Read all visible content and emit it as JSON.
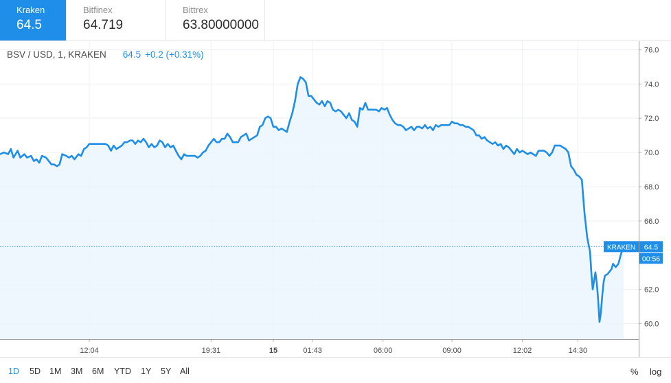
{
  "exchanges": [
    {
      "name": "Kraken",
      "price": "64.5",
      "active": true
    },
    {
      "name": "Bitfinex",
      "price": "64.719",
      "active": false
    },
    {
      "name": "Bittrex",
      "price": "63.80000000",
      "active": false
    }
  ],
  "legend": {
    "symbol": "BSV / USD, 1, KRAKEN",
    "value": "64.5",
    "change": "+0.2 (+0.31%)"
  },
  "chart_data": {
    "type": "area",
    "y_ticks": [
      "76.0",
      "74.0",
      "72.0",
      "70.0",
      "68.0",
      "66.0",
      "64.0",
      "62.0",
      "60.0"
    ],
    "ylim": [
      59.1,
      76.5
    ],
    "x_ticks": [
      {
        "label": "12:04",
        "x": 66,
        "bold": false
      },
      {
        "label": "19:31",
        "x": 156,
        "bold": false
      },
      {
        "label": "15",
        "x": 202,
        "bold": true
      },
      {
        "label": "01:43",
        "x": 231,
        "bold": false
      },
      {
        "label": "06:00",
        "x": 283,
        "bold": false
      },
      {
        "label": "09:00",
        "x": 334,
        "bold": false
      },
      {
        "label": "12:02",
        "x": 386,
        "bold": false
      },
      {
        "label": "14:30",
        "x": 427,
        "bold": false
      }
    ],
    "xlim": [
      0,
      472
    ],
    "series": [
      {
        "points": [
          [
            0,
            69.9
          ],
          [
            3,
            70.0
          ],
          [
            6,
            69.9
          ],
          [
            8,
            70.2
          ],
          [
            10,
            69.7
          ],
          [
            13,
            70.1
          ],
          [
            15,
            69.7
          ],
          [
            18,
            69.9
          ],
          [
            20,
            69.7
          ],
          [
            23,
            69.8
          ],
          [
            25,
            69.5
          ],
          [
            27,
            69.6
          ],
          [
            29,
            69.4
          ],
          [
            31,
            69.8
          ],
          [
            34,
            69.7
          ],
          [
            36,
            69.5
          ],
          [
            38,
            69.3
          ],
          [
            40,
            69.3
          ],
          [
            42,
            69.2
          ],
          [
            44,
            69.3
          ],
          [
            46,
            69.9
          ],
          [
            49,
            69.8
          ],
          [
            51,
            69.7
          ],
          [
            53,
            69.8
          ],
          [
            55,
            69.6
          ],
          [
            58,
            69.9
          ],
          [
            60,
            69.8
          ],
          [
            62,
            70.2
          ],
          [
            64,
            70.3
          ],
          [
            66,
            70.5
          ],
          [
            70,
            70.5
          ],
          [
            73,
            70.5
          ],
          [
            76,
            70.5
          ],
          [
            78,
            70.5
          ],
          [
            80,
            70.4
          ],
          [
            82,
            70.1
          ],
          [
            84,
            70.4
          ],
          [
            86,
            70.2
          ],
          [
            88,
            70.3
          ],
          [
            90,
            70.4
          ],
          [
            92,
            70.6
          ],
          [
            94,
            70.6
          ],
          [
            96,
            70.7
          ],
          [
            98,
            70.7
          ],
          [
            100,
            70.5
          ],
          [
            102,
            70.7
          ],
          [
            104,
            70.6
          ],
          [
            106,
            70.8
          ],
          [
            108,
            70.6
          ],
          [
            110,
            70.3
          ],
          [
            112,
            70.5
          ],
          [
            114,
            70.3
          ],
          [
            116,
            70.4
          ],
          [
            118,
            70.7
          ],
          [
            120,
            70.6
          ],
          [
            122,
            70.3
          ],
          [
            124,
            70.5
          ],
          [
            126,
            70.3
          ],
          [
            128,
            70.4
          ],
          [
            130,
            70.1
          ],
          [
            132,
            69.8
          ],
          [
            134,
            69.6
          ],
          [
            136,
            69.9
          ],
          [
            138,
            69.8
          ],
          [
            140,
            69.8
          ],
          [
            142,
            69.8
          ],
          [
            144,
            69.8
          ],
          [
            146,
            69.7
          ],
          [
            148,
            69.8
          ],
          [
            150,
            70.0
          ],
          [
            152,
            70.1
          ],
          [
            154,
            70.4
          ],
          [
            156,
            70.6
          ],
          [
            158,
            70.8
          ],
          [
            160,
            70.6
          ],
          [
            162,
            70.6
          ],
          [
            164,
            70.8
          ],
          [
            166,
            70.8
          ],
          [
            168,
            71.1
          ],
          [
            170,
            70.9
          ],
          [
            172,
            70.6
          ],
          [
            174,
            70.6
          ],
          [
            176,
            70.6
          ],
          [
            178,
            70.9
          ],
          [
            180,
            71.0
          ],
          [
            182,
            71.1
          ],
          [
            184,
            70.7
          ],
          [
            186,
            70.8
          ],
          [
            188,
            70.9
          ],
          [
            190,
            71.0
          ],
          [
            192,
            71.5
          ],
          [
            194,
            71.6
          ],
          [
            196,
            72.0
          ],
          [
            198,
            72.1
          ],
          [
            200,
            72.0
          ],
          [
            202,
            71.5
          ],
          [
            204,
            71.5
          ],
          [
            206,
            71.3
          ],
          [
            208,
            71.4
          ],
          [
            210,
            71.3
          ],
          [
            212,
            71.2
          ],
          [
            214,
            71.8
          ],
          [
            216,
            72.3
          ],
          [
            218,
            73.0
          ],
          [
            220,
            74.0
          ],
          [
            222,
            74.4
          ],
          [
            224,
            74.3
          ],
          [
            226,
            74.1
          ],
          [
            228,
            73.3
          ],
          [
            230,
            73.3
          ],
          [
            232,
            73.1
          ],
          [
            234,
            72.9
          ],
          [
            236,
            72.8
          ],
          [
            238,
            73.0
          ],
          [
            240,
            72.7
          ],
          [
            242,
            73.0
          ],
          [
            244,
            72.9
          ],
          [
            246,
            72.5
          ],
          [
            248,
            72.4
          ],
          [
            250,
            72.5
          ],
          [
            252,
            72.4
          ],
          [
            254,
            72.2
          ],
          [
            256,
            72.0
          ],
          [
            258,
            72.3
          ],
          [
            260,
            71.9
          ],
          [
            262,
            71.8
          ],
          [
            264,
            71.5
          ],
          [
            266,
            72.6
          ],
          [
            268,
            72.5
          ],
          [
            270,
            72.9
          ],
          [
            272,
            72.5
          ],
          [
            274,
            72.5
          ],
          [
            276,
            72.5
          ],
          [
            278,
            72.5
          ],
          [
            280,
            72.4
          ],
          [
            282,
            72.6
          ],
          [
            284,
            72.5
          ],
          [
            286,
            72.6
          ],
          [
            288,
            72.2
          ],
          [
            290,
            71.9
          ],
          [
            292,
            71.7
          ],
          [
            294,
            71.6
          ],
          [
            296,
            71.6
          ],
          [
            298,
            71.5
          ],
          [
            300,
            71.3
          ],
          [
            302,
            71.4
          ],
          [
            304,
            71.5
          ],
          [
            306,
            71.3
          ],
          [
            308,
            71.5
          ],
          [
            310,
            71.5
          ],
          [
            312,
            71.4
          ],
          [
            314,
            71.6
          ],
          [
            316,
            71.4
          ],
          [
            318,
            71.5
          ],
          [
            320,
            71.3
          ],
          [
            322,
            71.6
          ],
          [
            324,
            71.5
          ],
          [
            326,
            71.6
          ],
          [
            328,
            71.6
          ],
          [
            330,
            71.6
          ],
          [
            332,
            71.6
          ],
          [
            334,
            71.8
          ],
          [
            336,
            71.7
          ],
          [
            338,
            71.7
          ],
          [
            340,
            71.6
          ],
          [
            342,
            71.6
          ],
          [
            344,
            71.5
          ],
          [
            346,
            71.5
          ],
          [
            348,
            71.4
          ],
          [
            350,
            71.3
          ],
          [
            352,
            71.0
          ],
          [
            354,
            71.0
          ],
          [
            356,
            70.8
          ],
          [
            358,
            70.9
          ],
          [
            360,
            70.7
          ],
          [
            362,
            70.6
          ],
          [
            364,
            70.5
          ],
          [
            366,
            70.6
          ],
          [
            368,
            70.4
          ],
          [
            370,
            70.5
          ],
          [
            372,
            70.2
          ],
          [
            374,
            70.4
          ],
          [
            376,
            70.3
          ],
          [
            378,
            70.1
          ],
          [
            380,
            69.9
          ],
          [
            382,
            70.2
          ],
          [
            384,
            70.0
          ],
          [
            386,
            70.1
          ],
          [
            388,
            70.0
          ],
          [
            390,
            69.9
          ],
          [
            392,
            70.0
          ],
          [
            394,
            69.9
          ],
          [
            396,
            69.8
          ],
          [
            398,
            70.1
          ],
          [
            400,
            70.1
          ],
          [
            402,
            70.1
          ],
          [
            404,
            70.0
          ],
          [
            406,
            69.8
          ],
          [
            408,
            70.0
          ],
          [
            410,
            70.4
          ],
          [
            412,
            70.4
          ],
          [
            414,
            70.4
          ],
          [
            416,
            70.3
          ],
          [
            418,
            70.2
          ],
          [
            420,
            70.0
          ],
          [
            422,
            69.2
          ],
          [
            424,
            69.0
          ],
          [
            426,
            68.7
          ],
          [
            428,
            68.6
          ],
          [
            430,
            68.4
          ],
          [
            432,
            66.4
          ],
          [
            434,
            65.0
          ],
          [
            436,
            64.2
          ],
          [
            437,
            63.0
          ],
          [
            438,
            62.0
          ],
          [
            439,
            62.5
          ],
          [
            440,
            63.0
          ],
          [
            441,
            62.4
          ],
          [
            442,
            61.4
          ],
          [
            443,
            60.1
          ],
          [
            444,
            60.6
          ],
          [
            445,
            61.6
          ],
          [
            446,
            62.4
          ],
          [
            447,
            62.8
          ],
          [
            449,
            62.9
          ],
          [
            450,
            63.0
          ],
          [
            452,
            63.2
          ],
          [
            453,
            63.5
          ],
          [
            455,
            63.3
          ],
          [
            457,
            63.5
          ],
          [
            458,
            63.8
          ],
          [
            459,
            64.1
          ],
          [
            460,
            64.3
          ],
          [
            461,
            64.5
          ]
        ]
      }
    ],
    "last_value": 64.5,
    "price_label": "KRAKEN",
    "price_value": "64.5",
    "countdown": "00:56",
    "grid": true,
    "line_color": "#1e8ee8"
  },
  "range_buttons": [
    {
      "label": "1D",
      "active": true
    },
    {
      "label": "5D",
      "active": false
    },
    {
      "label": "1M",
      "active": false
    },
    {
      "label": "3M",
      "active": false
    },
    {
      "label": "6M",
      "active": false
    },
    {
      "label": "YTD",
      "active": false
    },
    {
      "label": "1Y",
      "active": false
    },
    {
      "label": "5Y",
      "active": false
    },
    {
      "label": "All",
      "active": false
    }
  ],
  "percent_label": "%",
  "log_label": "log"
}
